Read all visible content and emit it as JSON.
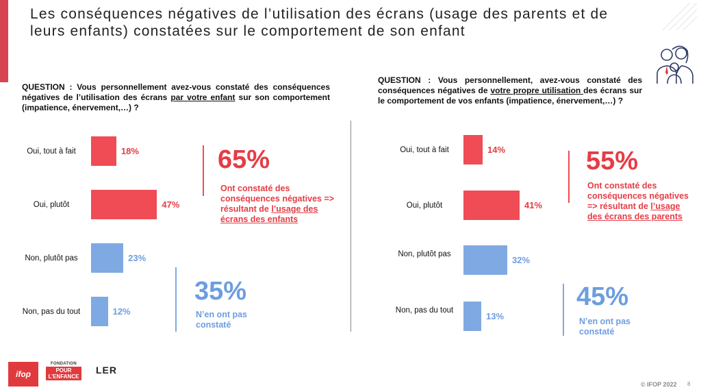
{
  "title": "Les conséquences négatives de l’utilisation des écrans (usage des parents et de leurs enfants) constatées sur le comportement de son enfant",
  "colors": {
    "positive": "#ef4c55",
    "negative": "#7fa9e2",
    "positive_text": "#e63c45",
    "negative_text": "#6d9de0",
    "accent": "#d64550"
  },
  "icons": [
    "family-icon",
    "ifop-logo",
    "fondation-pour-l-enfance-logo",
    "ler-logo"
  ],
  "footer": {
    "ifop_logo": "ifop",
    "fondation_top": "FONDATION",
    "fondation_main": "POUR L’ENFANCE",
    "ler_logo": "LER",
    "copyright": "© IFOP 2022",
    "page": "8"
  },
  "left": {
    "question_a": "QUESTION : Vous personnellement avez-vous constaté des conséquences négatives de l’utilisation des écrans ",
    "question_u": "par votre enfant",
    "question_b": " sur son comportement (impatience, énervement,…) ?",
    "positive_total": "65%",
    "positive_desc_a": "Ont constaté des conséquences négatives => résultant de ",
    "positive_desc_u": "l’usage des écrans des enfants",
    "negative_total": "35%",
    "negative_desc": "N’en ont pas constaté"
  },
  "right": {
    "question_a": "QUESTION : Vous personnellement, avez-vous constaté des conséquences négatives de ",
    "question_u": "votre propre utilisation ",
    "question_b": "des écrans sur le comportement de vos enfants (impatience, énervement,…) ?",
    "positive_total": "55%",
    "positive_desc_a": "Ont constaté des conséquences négatives => résultant de ",
    "positive_desc_u": "l’usage des écrans des parents",
    "negative_total": "45%",
    "negative_desc": "N’en ont pas constaté"
  },
  "chart_data": [
    {
      "type": "bar",
      "orientation": "horizontal",
      "categories": [
        "Oui, tout à fait",
        "Oui, plutôt",
        "Non, plutôt pas",
        "Non, pas du tout"
      ],
      "values": [
        18,
        47,
        23,
        12
      ],
      "labels": [
        "18%",
        "47%",
        "23%",
        "12%"
      ]
    },
    {
      "type": "bar",
      "orientation": "horizontal",
      "categories": [
        "Oui, tout à fait",
        "Oui, plutôt",
        "Non, plutôt pas",
        "Non, pas du tout"
      ],
      "values": [
        14,
        41,
        32,
        13
      ],
      "labels": [
        "14%",
        "41%",
        "32%",
        "13%"
      ]
    }
  ]
}
